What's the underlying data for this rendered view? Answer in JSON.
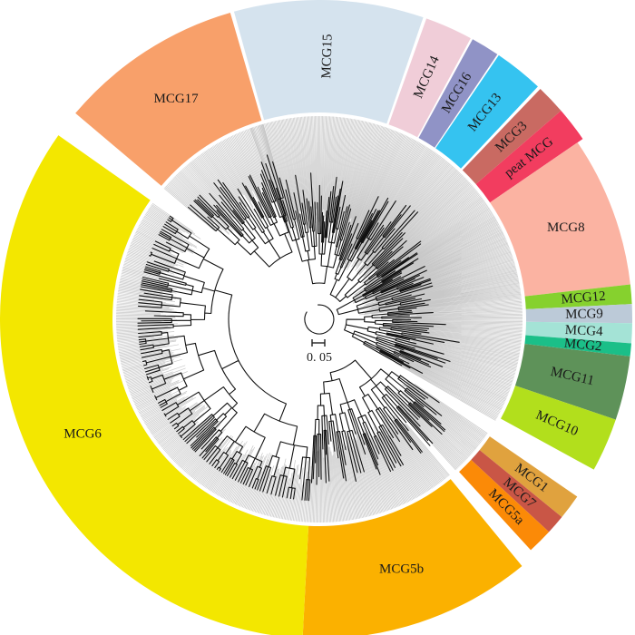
{
  "figure": {
    "scale_bar_label": "0. 05"
  },
  "clades": [
    {
      "name": "MCG15",
      "color": "#d5e3ee"
    },
    {
      "name": "MCG14",
      "color": "#f0cdd8"
    },
    {
      "name": "MCG16",
      "color": "#9093c6"
    },
    {
      "name": "MCG13",
      "color": "#35c3f0"
    },
    {
      "name": "MCG3",
      "color": "#c96a62"
    },
    {
      "name": "peat MCG",
      "color": "#f23d5f"
    },
    {
      "name": "MCG8",
      "color": "#fbb3a2"
    },
    {
      "name": "MCG12",
      "color": "#86d12e"
    },
    {
      "name": "MCG9",
      "color": "#bccad8"
    },
    {
      "name": "MCG4",
      "color": "#a4e3d6"
    },
    {
      "name": "MCG2",
      "color": "#1bbf88"
    },
    {
      "name": "MCG11",
      "color": "#5e9259"
    },
    {
      "name": "MCG10",
      "color": "#b2df1c"
    },
    {
      "name": "MCG1",
      "color": "#e0a23e"
    },
    {
      "name": "MCG7",
      "color": "#c95646"
    },
    {
      "name": "MCG5a",
      "color": "#fb8a07"
    },
    {
      "name": "MCG5b",
      "color": "#fbb100"
    },
    {
      "name": "MCG6",
      "color": "#f3e700"
    },
    {
      "name": "MCG17",
      "color": "#f8a06a"
    }
  ]
}
